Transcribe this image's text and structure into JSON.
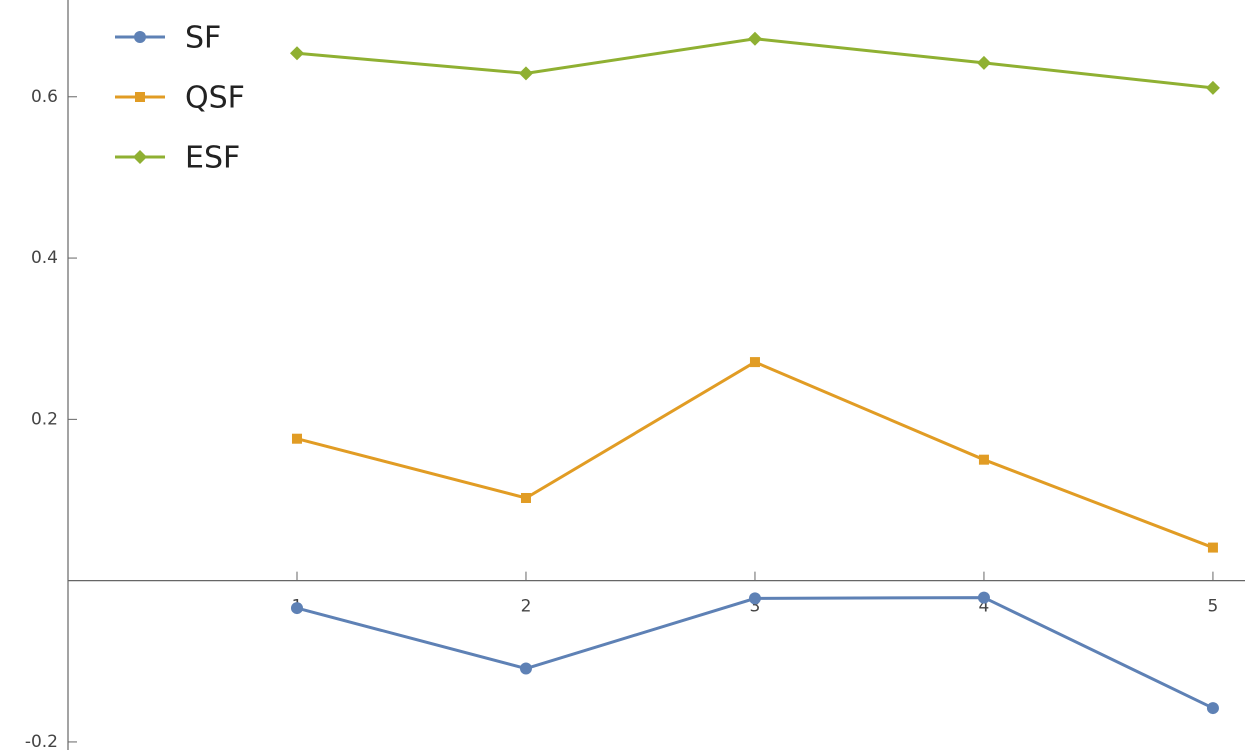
{
  "chart_data": {
    "type": "line",
    "x": [
      1,
      2,
      3,
      4,
      5
    ],
    "xlim": [
      0,
      5.14
    ],
    "xticks": [
      1,
      2,
      3,
      4,
      5
    ],
    "ylim": [
      -0.21,
      0.72
    ],
    "yticks": [
      -0.2,
      0.2,
      0.4,
      0.6
    ],
    "legend": "top-left",
    "series": [
      {
        "name": "SF",
        "color": "#5e81b5",
        "marker": "circle",
        "values": [
          -0.034,
          -0.109,
          -0.022,
          -0.021,
          -0.158
        ]
      },
      {
        "name": "QSF",
        "color": "#e19c24",
        "marker": "square",
        "values": [
          0.176,
          0.1025,
          0.271,
          0.15,
          0.041
        ]
      },
      {
        "name": "ESF",
        "color": "#8fb032",
        "marker": "diamond",
        "values": [
          0.654,
          0.629,
          0.672,
          0.642,
          0.611
        ]
      }
    ]
  }
}
